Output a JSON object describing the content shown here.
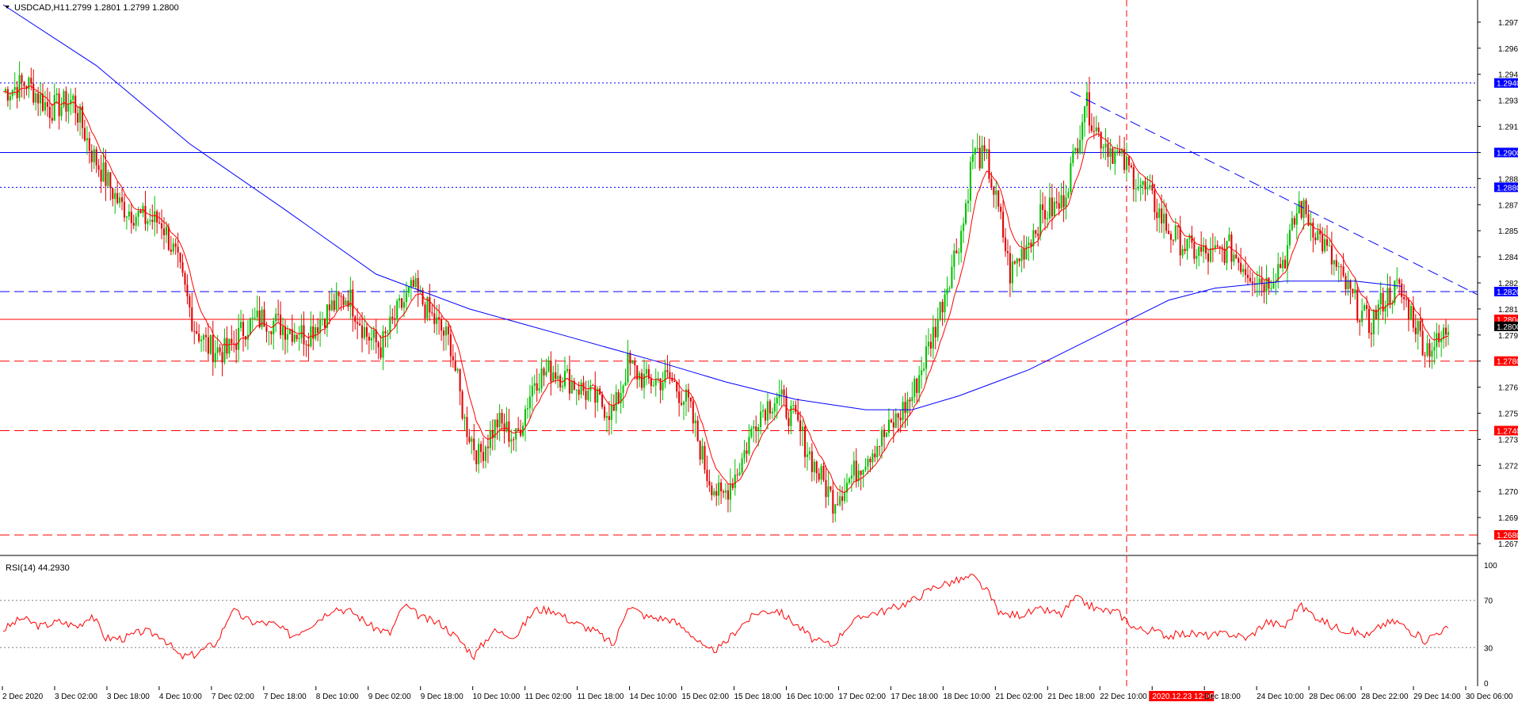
{
  "header": {
    "symbol": "USDCAD,H1",
    "ohlc": "1.2799 1.2801 1.2799 1.2800"
  },
  "rsi_header": "RSI(14) 44.2930",
  "colors": {
    "bull": "#00c000",
    "bear": "#e00000",
    "ma_fast": "#ff0000",
    "ma_slow": "#0000ff",
    "resistance": "#0000ff",
    "support": "#ff0000",
    "rsi": "#ff0000",
    "price_tag": "#000000"
  },
  "chart_data": [
    {
      "type": "candlestick",
      "title": "USDCAD,H1",
      "ylim": [
        1.267,
        1.2985
      ],
      "y_ticks": [
        "1.2975",
        "1.2960",
        "1.2945",
        "1.2930",
        "1.2915",
        "1.2900",
        "1.2885",
        "1.2870",
        "1.2855",
        "1.2840",
        "1.2825",
        "1.2810",
        "1.2795",
        "1.2780",
        "1.2765",
        "1.2750",
        "1.2735",
        "1.2720",
        "1.2705",
        "1.2690",
        "1.2675"
      ],
      "x_tick_labels": [
        "2 Dec 2020",
        "3 Dec 02:00",
        "3 Dec 18:00",
        "4 Dec 10:00",
        "7 Dec 02:00",
        "7 Dec 18:00",
        "8 Dec 10:00",
        "9 Dec 02:00",
        "9 Dec 18:00",
        "10 Dec 10:00",
        "11 Dec 02:00",
        "11 Dec 18:00",
        "14 Dec 10:00",
        "15 Dec 02:00",
        "15 Dec 18:00",
        "16 Dec 10:00",
        "17 Dec 02:00",
        "17 Dec 18:00",
        "18 Dec 10:00",
        "21 Dec 02:00",
        "21 Dec 18:00",
        "22 Dec 10:00",
        "2020.12.23 12:00",
        "Dec 18:00",
        "24 Dec 10:00",
        "28 Dec 06:00",
        "28 Dec 22:00",
        "29 Dec 14:00",
        "30 Dec 06:00"
      ],
      "current_price": 1.28,
      "current_price_label": "1.2800",
      "close_path": [
        [
          0,
          1.2935
        ],
        [
          10,
          1.294
        ],
        [
          20,
          1.2925
        ],
        [
          30,
          1.293
        ],
        [
          38,
          1.29
        ],
        [
          50,
          1.287
        ],
        [
          60,
          1.2862
        ],
        [
          68,
          1.286
        ],
        [
          74,
          1.284
        ],
        [
          82,
          1.28
        ],
        [
          88,
          1.2788
        ],
        [
          96,
          1.2785
        ],
        [
          104,
          1.28
        ],
        [
          112,
          1.2805
        ],
        [
          120,
          1.28
        ],
        [
          130,
          1.2795
        ],
        [
          140,
          1.281
        ],
        [
          148,
          1.2818
        ],
        [
          156,
          1.2795
        ],
        [
          162,
          1.2788
        ],
        [
          170,
          1.281
        ],
        [
          176,
          1.2822
        ],
        [
          184,
          1.2805
        ],
        [
          192,
          1.279
        ],
        [
          198,
          1.2745
        ],
        [
          204,
          1.2725
        ],
        [
          212,
          1.2745
        ],
        [
          220,
          1.2735
        ],
        [
          228,
          1.277
        ],
        [
          236,
          1.2775
        ],
        [
          244,
          1.2768
        ],
        [
          254,
          1.2758
        ],
        [
          262,
          1.275
        ],
        [
          268,
          1.2778
        ],
        [
          276,
          1.2768
        ],
        [
          286,
          1.277
        ],
        [
          294,
          1.2755
        ],
        [
          302,
          1.2715
        ],
        [
          308,
          1.27
        ],
        [
          316,
          1.272
        ],
        [
          324,
          1.275
        ],
        [
          332,
          1.276
        ],
        [
          340,
          1.2745
        ],
        [
          348,
          1.272
        ],
        [
          356,
          1.27
        ],
        [
          362,
          1.271
        ],
        [
          370,
          1.2725
        ],
        [
          380,
          1.274
        ],
        [
          390,
          1.276
        ],
        [
          400,
          1.28
        ],
        [
          406,
          1.283
        ],
        [
          412,
          1.286
        ],
        [
          416,
          1.29
        ],
        [
          422,
          1.2895
        ],
        [
          428,
          1.286
        ],
        [
          432,
          1.283
        ],
        [
          438,
          1.2845
        ],
        [
          446,
          1.2865
        ],
        [
          454,
          1.287
        ],
        [
          460,
          1.29
        ],
        [
          464,
          1.293
        ],
        [
          470,
          1.291
        ],
        [
          478,
          1.2898
        ],
        [
          486,
          1.2885
        ],
        [
          494,
          1.287
        ],
        [
          500,
          1.2855
        ],
        [
          508,
          1.2845
        ],
        [
          518,
          1.284
        ],
        [
          526,
          1.2845
        ],
        [
          534,
          1.2832
        ],
        [
          542,
          1.2825
        ],
        [
          550,
          1.284
        ],
        [
          556,
          1.287
        ],
        [
          562,
          1.2858
        ],
        [
          570,
          1.2838
        ],
        [
          578,
          1.2818
        ],
        [
          586,
          1.28
        ],
        [
          592,
          1.2815
        ],
        [
          598,
          1.2822
        ],
        [
          604,
          1.2808
        ],
        [
          610,
          1.2788
        ],
        [
          616,
          1.279
        ],
        [
          620,
          1.28
        ]
      ],
      "high_low_extremes": {
        "high": 1.2958,
        "low": 1.269
      },
      "horizontal_levels": [
        {
          "price": 1.294,
          "label": "1.2940",
          "style": "dotted",
          "color": "#0000ff"
        },
        {
          "price": 1.29,
          "label": "1.2900",
          "style": "solid",
          "color": "#0000ff"
        },
        {
          "price": 1.288,
          "label": "1.2880",
          "style": "dotted",
          "color": "#0000ff"
        },
        {
          "price": 1.282,
          "label": "1.2820",
          "style": "dashed",
          "color": "#0000ff"
        },
        {
          "price": 1.2804,
          "label": "1.2804",
          "style": "solid",
          "color": "#ff0000"
        },
        {
          "price": 1.278,
          "label": "1.2780",
          "style": "dashed",
          "color": "#ff0000"
        },
        {
          "price": 1.274,
          "label": "1.2740",
          "style": "dashed",
          "color": "#ff0000"
        },
        {
          "price": 1.268,
          "label": "1.2680",
          "style": "dashed",
          "color": "#ff0000"
        }
      ],
      "slow_ma": [
        [
          0,
          1.2985
        ],
        [
          40,
          1.295
        ],
        [
          80,
          1.2905
        ],
        [
          120,
          1.2868
        ],
        [
          160,
          1.283
        ],
        [
          200,
          1.281
        ],
        [
          240,
          1.2795
        ],
        [
          280,
          1.278
        ],
        [
          310,
          1.2768
        ],
        [
          340,
          1.2758
        ],
        [
          370,
          1.2752
        ],
        [
          390,
          1.2752
        ],
        [
          410,
          1.276
        ],
        [
          440,
          1.2775
        ],
        [
          470,
          1.2795
        ],
        [
          500,
          1.2815
        ],
        [
          520,
          1.2822
        ],
        [
          550,
          1.2826
        ],
        [
          580,
          1.2826
        ],
        [
          600,
          1.2823
        ]
      ],
      "trendline": {
        "from": [
          458,
          1.2935
        ],
        "to": [
          620,
          1.2832
        ],
        "style": "dashed",
        "color": "#0000ff"
      },
      "vertical_marker": {
        "bar": 482,
        "label": "2020.12.23 12:00",
        "style": "dashed",
        "color": "#ff0000"
      }
    },
    {
      "type": "line",
      "title": "RSI(14) 44.2930",
      "ylim": [
        0,
        100
      ],
      "y_ticks": [
        "100",
        "70",
        "30",
        "0"
      ],
      "levels": [
        70,
        30
      ],
      "series": [
        {
          "values": [
            [
              0,
              45
            ],
            [
              8,
              55
            ],
            [
              16,
              48
            ],
            [
              24,
              52
            ],
            [
              32,
              48
            ],
            [
              38,
              58
            ],
            [
              44,
              38
            ],
            [
              52,
              38
            ],
            [
              60,
              44
            ],
            [
              68,
              40
            ],
            [
              76,
              22
            ],
            [
              82,
              24
            ],
            [
              92,
              35
            ],
            [
              98,
              62
            ],
            [
              106,
              52
            ],
            [
              116,
              50
            ],
            [
              124,
              40
            ],
            [
              134,
              52
            ],
            [
              142,
              64
            ],
            [
              150,
              60
            ],
            [
              158,
              48
            ],
            [
              166,
              42
            ],
            [
              172,
              66
            ],
            [
              180,
              55
            ],
            [
              188,
              50
            ],
            [
              196,
              36
            ],
            [
              202,
              23
            ],
            [
              210,
              44
            ],
            [
              220,
              40
            ],
            [
              228,
              62
            ],
            [
              236,
              62
            ],
            [
              244,
              52
            ],
            [
              254,
              44
            ],
            [
              262,
              32
            ],
            [
              268,
              66
            ],
            [
              276,
              56
            ],
            [
              286,
              54
            ],
            [
              294,
              44
            ],
            [
              302,
              27
            ],
            [
              308,
              30
            ],
            [
              316,
              48
            ],
            [
              324,
              60
            ],
            [
              332,
              62
            ],
            [
              340,
              50
            ],
            [
              348,
              36
            ],
            [
              356,
              32
            ],
            [
              362,
              48
            ],
            [
              370,
              58
            ],
            [
              380,
              62
            ],
            [
              390,
              70
            ],
            [
              400,
              82
            ],
            [
              408,
              86
            ],
            [
              416,
              90
            ],
            [
              422,
              78
            ],
            [
              428,
              58
            ],
            [
              436,
              58
            ],
            [
              446,
              62
            ],
            [
              454,
              58
            ],
            [
              460,
              72
            ],
            [
              470,
              62
            ],
            [
              478,
              60
            ],
            [
              486,
              46
            ],
            [
              494,
              44
            ],
            [
              500,
              40
            ],
            [
              508,
              42
            ],
            [
              518,
              40
            ],
            [
              526,
              42
            ],
            [
              534,
              38
            ],
            [
              542,
              52
            ],
            [
              550,
              48
            ],
            [
              556,
              66
            ],
            [
              562,
              58
            ],
            [
              570,
              48
            ],
            [
              578,
              44
            ],
            [
              586,
              40
            ],
            [
              592,
              50
            ],
            [
              598,
              52
            ],
            [
              604,
              44
            ],
            [
              610,
              36
            ],
            [
              616,
              44
            ],
            [
              620,
              46
            ]
          ]
        }
      ]
    }
  ]
}
